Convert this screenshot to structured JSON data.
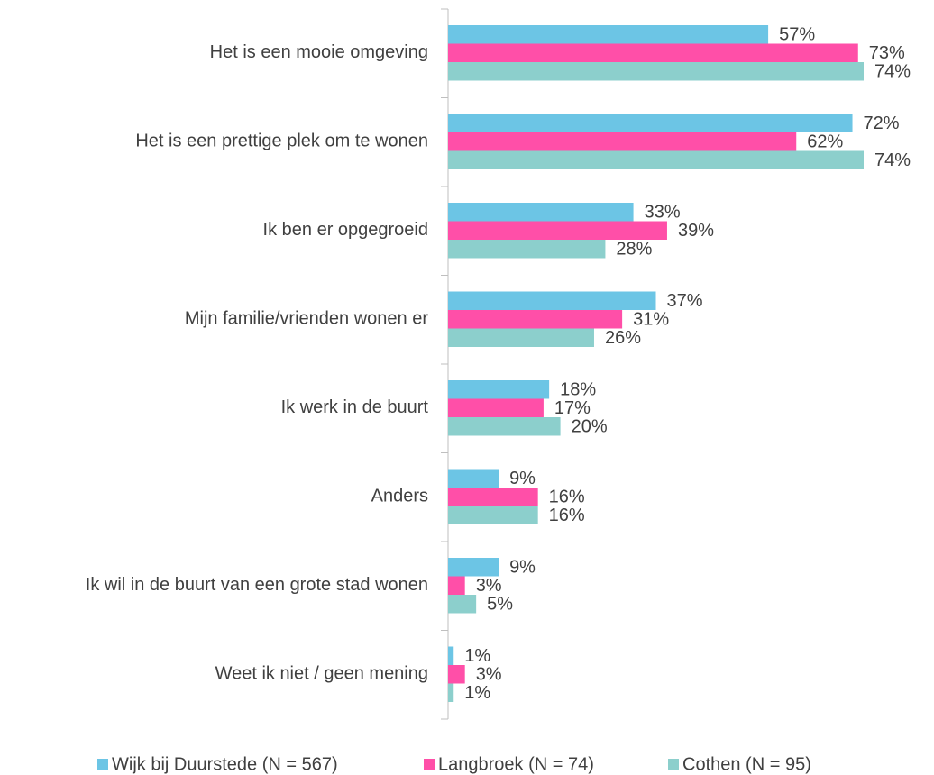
{
  "chart_data": {
    "type": "bar",
    "orientation": "horizontal",
    "categories": [
      "Het is een mooie omgeving",
      "Het is een prettige plek om te wonen",
      "Ik ben er opgegroeid",
      "Mijn familie/vrienden wonen er",
      "Ik werk in de buurt",
      "Anders",
      "Ik wil in de buurt van een grote stad wonen",
      "Weet ik niet / geen mening"
    ],
    "series": [
      {
        "name": "Wijk bij Duurstede (N = 567)",
        "color": "#6cc5e5",
        "values": [
          57,
          72,
          33,
          37,
          18,
          9,
          9,
          1
        ],
        "value_labels": [
          "57%",
          "72%",
          "33%",
          "37%",
          "18%",
          "9%",
          "9%",
          "1%"
        ]
      },
      {
        "name": "Langbroek (N = 74)",
        "color": "#ff4fa8",
        "values": [
          73,
          62,
          39,
          31,
          17,
          16,
          3,
          3
        ],
        "value_labels": [
          "73%",
          "62%",
          "39%",
          "31%",
          "17%",
          "16%",
          "3%",
          "3%"
        ]
      },
      {
        "name": "Cothen (N = 95)",
        "color": "#8ccfcc",
        "values": [
          74,
          74,
          28,
          26,
          20,
          16,
          5,
          1
        ],
        "value_labels": [
          "74%",
          "74%",
          "28%",
          "26%",
          "20%",
          "16%",
          "5%",
          "1%"
        ]
      }
    ],
    "legend": "bottom"
  }
}
